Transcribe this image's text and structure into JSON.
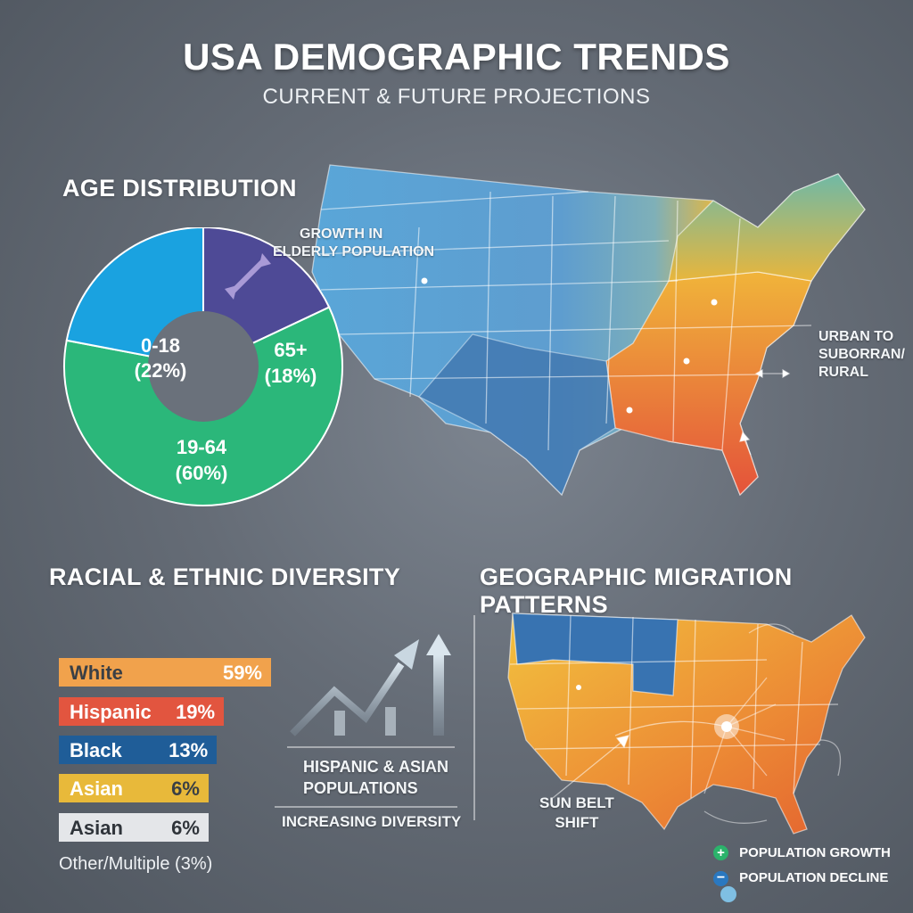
{
  "header": {
    "title": "USA DEMOGRAPHIC TRENDS",
    "subtitle": "CURRENT & FUTURE PROJECTIONS"
  },
  "age": {
    "heading": "AGE DISTRIBUTION",
    "note_line1": "GROWTH IN",
    "note_line2": "ELDERLY POPULATION"
  },
  "map_top": {
    "note_line1": "URBAN TO",
    "note_line2": "SUBORRAN/",
    "note_line3": "RURAL"
  },
  "diversity": {
    "heading": "RACIAL & ETHNIC DIVERSITY",
    "note_line1": "HISPANIC & ASIAN",
    "note_line2": "POPULATIONS",
    "note_line3": "INCREASING DIVERSITY",
    "other": "Other/Multiple (3%)"
  },
  "migration": {
    "heading": "GEOGRAPHIC MIGRATION PATTERNS",
    "callout_line1": "SUN BELT",
    "callout_line2": "SHIFT",
    "legend_growth": "POPULATION GROWTH",
    "legend_decline": "POPULATION DECLINE"
  },
  "colors": {
    "age_0_18": "#1aa2e0",
    "age_19_64": "#2bb77a",
    "age_65": "#4e4a96",
    "white": "#f1a24c",
    "hispanic": "#e2553f",
    "black": "#1f5d98",
    "asian": "#e8b93a",
    "asian2": "#e4e6e9",
    "growth": "#2bb36b",
    "decline": "#2a78c0"
  },
  "chart_data": [
    {
      "type": "pie",
      "title": "AGE DISTRIBUTION",
      "categories": [
        "0-18",
        "19-64",
        "65+"
      ],
      "values": [
        22,
        60,
        18
      ],
      "labels": [
        "(22%)",
        "(60%)",
        "(18%)"
      ]
    },
    {
      "type": "bar",
      "title": "RACIAL & ETHNIC DIVERSITY",
      "categories": [
        "White",
        "Hispanic",
        "Black",
        "Asian",
        "Asian"
      ],
      "values": [
        59,
        19,
        13,
        6,
        6
      ],
      "value_labels": [
        "59%",
        "19%",
        "13%",
        "6%",
        "6%"
      ]
    }
  ]
}
